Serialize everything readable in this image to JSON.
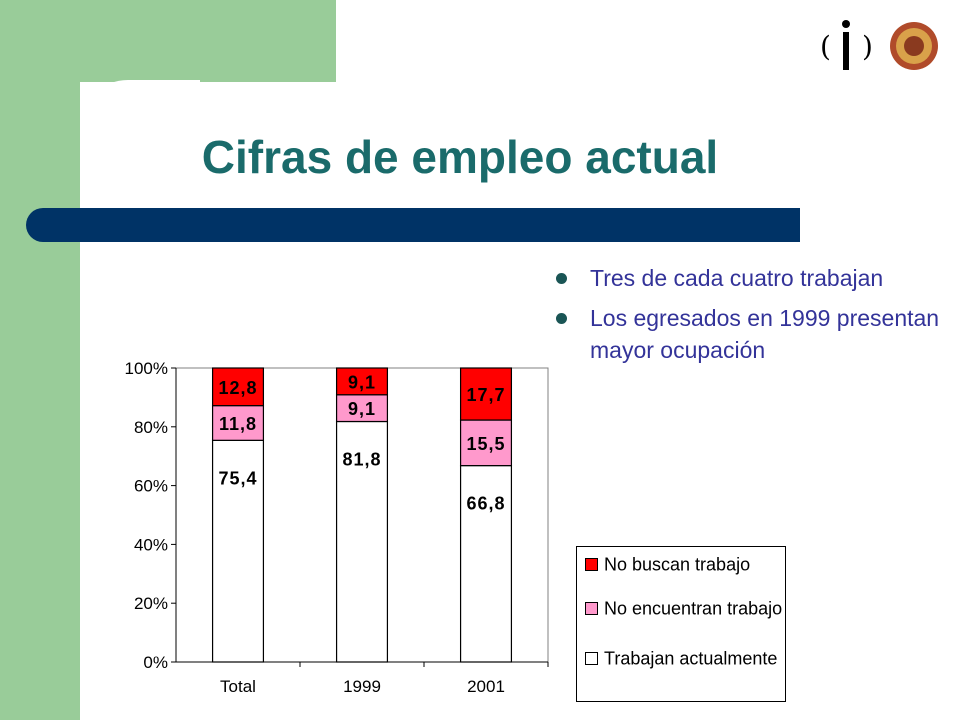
{
  "slide": {
    "title": "Cifras de empleo actual",
    "bullets": [
      "Tres de cada cuatro trabajan",
      "Los egresados en 1999 presentan mayor ocupación"
    ]
  },
  "colors": {
    "accent_green": "#99cc99",
    "band": "#003366",
    "title": "#1a6b6b",
    "red": "#ff0000",
    "pink": "#ff99cc",
    "white": "#ffffff"
  },
  "chart_data": {
    "type": "bar",
    "stacked": "percent",
    "categories": [
      "Total",
      "1999",
      "2001"
    ],
    "series": [
      {
        "name": "Trabajan actualmente",
        "values": [
          75.4,
          81.8,
          66.8
        ],
        "labels": [
          "75,4",
          "81,8",
          "66,8"
        ],
        "color": "#ffffff"
      },
      {
        "name": "No encuentran trabajo",
        "values": [
          11.8,
          9.1,
          15.5
        ],
        "labels": [
          "11,8",
          "9,1",
          "15,5"
        ],
        "color": "#ff99cc"
      },
      {
        "name": "No buscan trabajo",
        "values": [
          12.8,
          9.1,
          17.7
        ],
        "labels": [
          "12,8",
          "9,1",
          "17,7"
        ],
        "color": "#ff0000"
      }
    ],
    "y_ticks": [
      "0%",
      "20%",
      "40%",
      "60%",
      "80%",
      "100%"
    ],
    "ylim": [
      0,
      100
    ],
    "grid": false,
    "legend_position": "bottom-right",
    "legend": [
      {
        "label": "No buscan trabajo",
        "color": "#ff0000"
      },
      {
        "label": "No encuentran trabajo",
        "color": "#ff99cc"
      },
      {
        "label": "Trabajan actualmente",
        "color": "#ffffff"
      }
    ]
  }
}
